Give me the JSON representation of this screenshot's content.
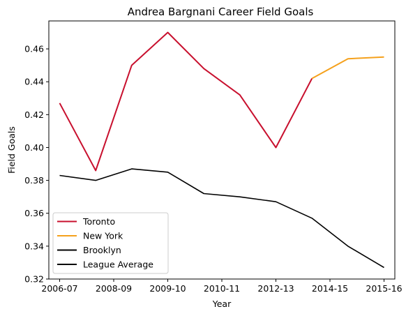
{
  "chart_data": {
    "type": "line",
    "title": "Andrea Bargnani Career Field Goals",
    "xlabel": "Year",
    "ylabel": "Field Goals",
    "ylim": [
      0.32,
      0.477
    ],
    "yticks": [
      0.32,
      0.34,
      0.36,
      0.38,
      0.4,
      0.42,
      0.44,
      0.46
    ],
    "ytick_labels": [
      "0.32",
      "0.34",
      "0.36",
      "0.38",
      "0.40",
      "0.42",
      "0.44",
      "0.46"
    ],
    "xticks": [
      {
        "pos": 0,
        "label": "2006-07"
      },
      {
        "pos": 1.5,
        "label": "2008-09"
      },
      {
        "pos": 3,
        "label": "2009-10"
      },
      {
        "pos": 4.5,
        "label": "2010-11"
      },
      {
        "pos": 6,
        "label": "2012-13"
      },
      {
        "pos": 7.5,
        "label": "2014-15"
      },
      {
        "pos": 9,
        "label": "2015-16"
      }
    ],
    "xlim": [
      -0.3,
      9.3
    ],
    "grid": false,
    "legend_position": "lower-left",
    "series": [
      {
        "name": "Toronto",
        "color": "#c8102e",
        "width": 2,
        "points": [
          [
            0,
            0.427
          ],
          [
            1.0,
            0.386
          ],
          [
            2.0,
            0.45
          ],
          [
            3.0,
            0.47
          ],
          [
            4.0,
            0.448
          ],
          [
            5.0,
            0.432
          ],
          [
            6.0,
            0.4
          ],
          [
            7.0,
            0.442
          ]
        ]
      },
      {
        "name": "New York",
        "color": "#f5a11c",
        "width": 2,
        "points": [
          [
            7.0,
            0.442
          ],
          [
            8.0,
            0.454
          ],
          [
            9.0,
            0.455
          ]
        ]
      },
      {
        "name": "Brooklyn",
        "color": "#000000",
        "width": 2,
        "points": []
      },
      {
        "name": "League Average",
        "color": "#000000",
        "width": 1.6,
        "points": [
          [
            0,
            0.383
          ],
          [
            1.0,
            0.38
          ],
          [
            2.0,
            0.387
          ],
          [
            3.0,
            0.385
          ],
          [
            4.0,
            0.372
          ],
          [
            5.0,
            0.37
          ],
          [
            6.0,
            0.367
          ],
          [
            7.0,
            0.357
          ],
          [
            8.0,
            0.34
          ],
          [
            9.0,
            0.327
          ]
        ]
      }
    ]
  }
}
